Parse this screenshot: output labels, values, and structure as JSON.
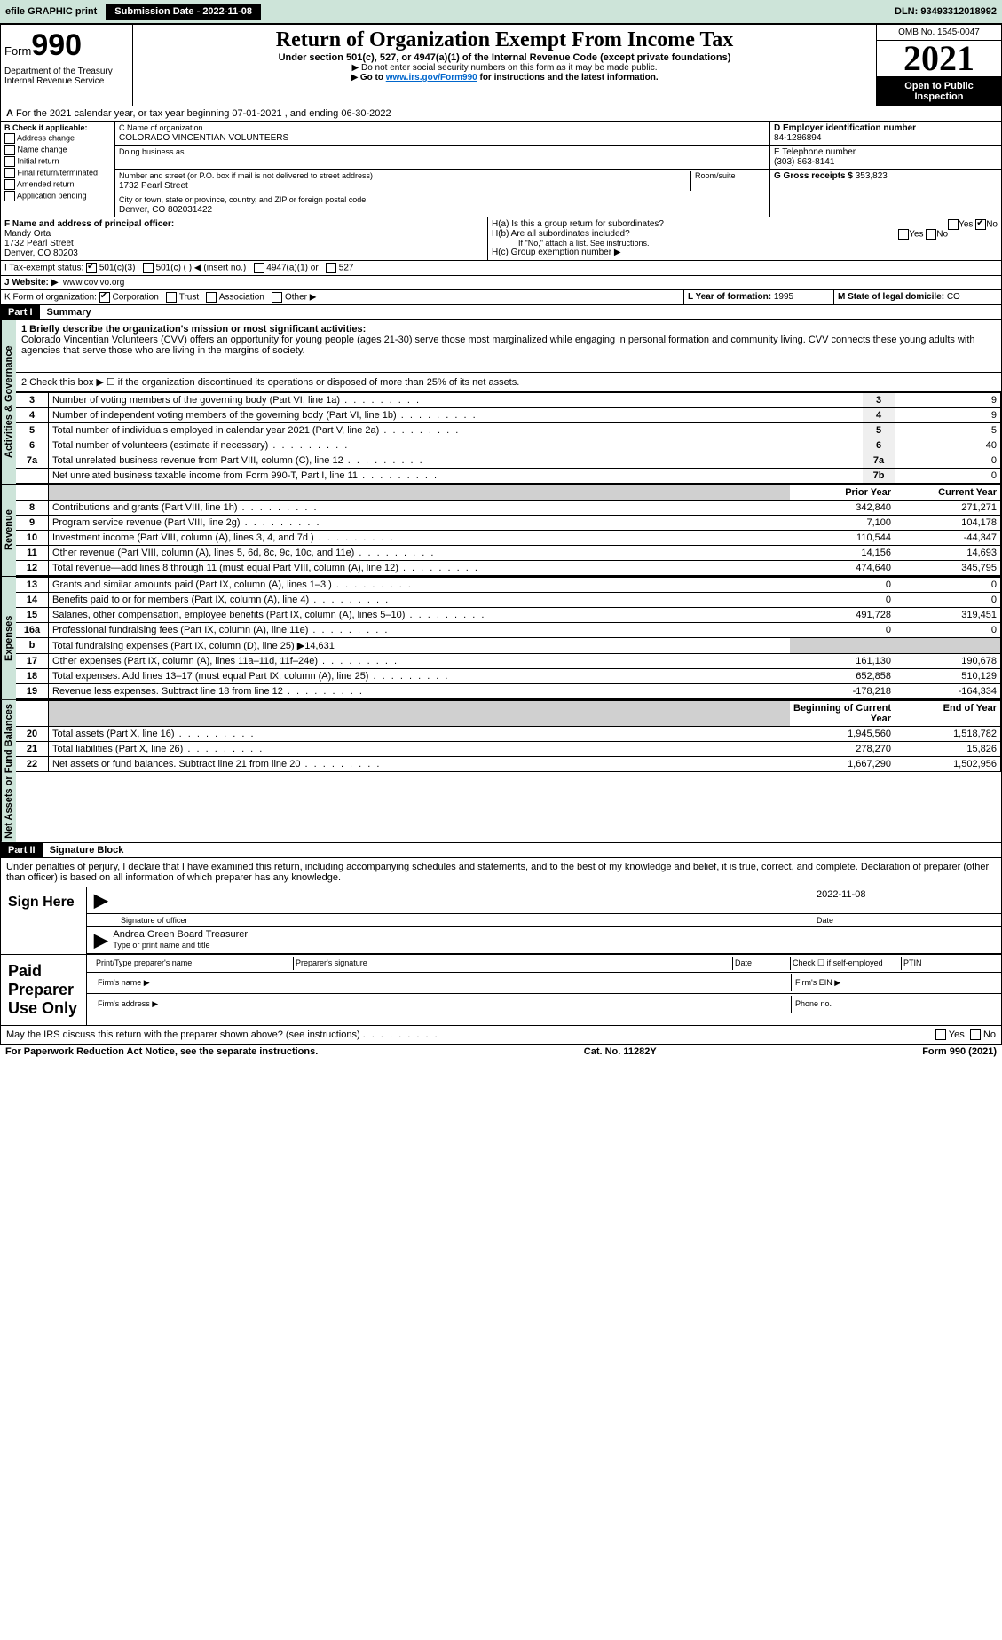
{
  "topbar": {
    "efile": "efile GRAPHIC print",
    "submission_label": "Submission Date - 2022-11-08",
    "dln": "DLN: 93493312018992"
  },
  "header": {
    "form_label": "Form",
    "form_number": "990",
    "title": "Return of Organization Exempt From Income Tax",
    "subtitle": "Under section 501(c), 527, or 4947(a)(1) of the Internal Revenue Code (except private foundations)",
    "note1": "▶ Do not enter social security numbers on this form as it may be made public.",
    "note2_pre": "▶ Go to ",
    "note2_link": "www.irs.gov/Form990",
    "note2_post": " for instructions and the latest information.",
    "dept": "Department of the Treasury\nInternal Revenue Service",
    "omb": "OMB No. 1545-0047",
    "year": "2021",
    "inspect": "Open to Public Inspection"
  },
  "A": {
    "text": "For the 2021 calendar year, or tax year beginning 07-01-2021   , and ending 06-30-2022"
  },
  "B": {
    "label": "B Check if applicable:",
    "opts": [
      "Address change",
      "Name change",
      "Initial return",
      "Final return/terminated",
      "Amended return",
      "Application pending"
    ]
  },
  "C": {
    "name_label": "C Name of organization",
    "name": "COLORADO VINCENTIAN VOLUNTEERS",
    "dba_label": "Doing business as",
    "street_label": "Number and street (or P.O. box if mail is not delivered to street address)",
    "room_label": "Room/suite",
    "street": "1732 Pearl Street",
    "city_label": "City or town, state or province, country, and ZIP or foreign postal code",
    "city": "Denver, CO  802031422"
  },
  "D": {
    "label": "D Employer identification number",
    "value": "84-1286894"
  },
  "E": {
    "label": "E Telephone number",
    "value": "(303) 863-8141"
  },
  "G": {
    "label": "G Gross receipts $",
    "value": "353,823"
  },
  "F": {
    "label": "F  Name and address of principal officer:",
    "name": "Mandy Orta",
    "addr1": "1732 Pearl Street",
    "addr2": "Denver, CO  80203"
  },
  "H": {
    "a": "H(a)  Is this a group return for subordinates?",
    "b": "H(b)  Are all subordinates included?",
    "b_note": "If \"No,\" attach a list. See instructions.",
    "c": "H(c)  Group exemption number ▶",
    "yes": "Yes",
    "no": "No"
  },
  "I": {
    "label": "I   Tax-exempt status:",
    "o1": "501(c)(3)",
    "o2": "501(c) (  ) ◀ (insert no.)",
    "o3": "4947(a)(1) or",
    "o4": "527"
  },
  "J": {
    "label": "J   Website: ▶",
    "value": "www.covivo.org"
  },
  "K": {
    "label": "K Form of organization:",
    "o1": "Corporation",
    "o2": "Trust",
    "o3": "Association",
    "o4": "Other ▶"
  },
  "L": {
    "label": "L Year of formation:",
    "value": "1995"
  },
  "M": {
    "label": "M State of legal domicile:",
    "value": "CO"
  },
  "part1": {
    "label": "Part I",
    "title": "Summary",
    "l1": "1  Briefly describe the organization's mission or most significant activities:",
    "mission": "Colorado Vincentian Volunteers (CVV) offers an opportunity for young people (ages 21-30) serve those most marginalized while engaging in personal formation and community living. CVV connects these young adults with agencies that serve those who are living in the margins of society.",
    "l2": "2   Check this box ▶ ☐  if the organization discontinued its operations or disposed of more than 25% of its net assets.",
    "col_prior": "Prior Year",
    "col_current": "Current Year",
    "col_begin": "Beginning of Current Year",
    "col_end": "End of Year",
    "rows_gov": [
      {
        "n": "3",
        "d": "Number of voting members of the governing body (Part VI, line 1a)",
        "label": "3",
        "v": "9"
      },
      {
        "n": "4",
        "d": "Number of independent voting members of the governing body (Part VI, line 1b)",
        "label": "4",
        "v": "9"
      },
      {
        "n": "5",
        "d": "Total number of individuals employed in calendar year 2021 (Part V, line 2a)",
        "label": "5",
        "v": "5"
      },
      {
        "n": "6",
        "d": "Total number of volunteers (estimate if necessary)",
        "label": "6",
        "v": "40"
      },
      {
        "n": "7a",
        "d": "Total unrelated business revenue from Part VIII, column (C), line 12",
        "label": "7a",
        "v": "0"
      },
      {
        "n": "",
        "d": "Net unrelated business taxable income from Form 990-T, Part I, line 11",
        "label": "7b",
        "v": "0"
      }
    ],
    "rows_rev": [
      {
        "n": "8",
        "d": "Contributions and grants (Part VIII, line 1h)",
        "p": "342,840",
        "c": "271,271"
      },
      {
        "n": "9",
        "d": "Program service revenue (Part VIII, line 2g)",
        "p": "7,100",
        "c": "104,178"
      },
      {
        "n": "10",
        "d": "Investment income (Part VIII, column (A), lines 3, 4, and 7d )",
        "p": "110,544",
        "c": "-44,347"
      },
      {
        "n": "11",
        "d": "Other revenue (Part VIII, column (A), lines 5, 6d, 8c, 9c, 10c, and 11e)",
        "p": "14,156",
        "c": "14,693"
      },
      {
        "n": "12",
        "d": "Total revenue—add lines 8 through 11 (must equal Part VIII, column (A), line 12)",
        "p": "474,640",
        "c": "345,795"
      }
    ],
    "rows_exp": [
      {
        "n": "13",
        "d": "Grants and similar amounts paid (Part IX, column (A), lines 1–3 )",
        "p": "0",
        "c": "0"
      },
      {
        "n": "14",
        "d": "Benefits paid to or for members (Part IX, column (A), line 4)",
        "p": "0",
        "c": "0"
      },
      {
        "n": "15",
        "d": "Salaries, other compensation, employee benefits (Part IX, column (A), lines 5–10)",
        "p": "491,728",
        "c": "319,451"
      },
      {
        "n": "16a",
        "d": "Professional fundraising fees (Part IX, column (A), line 11e)",
        "p": "0",
        "c": "0"
      },
      {
        "n": "b",
        "d": "Total fundraising expenses (Part IX, column (D), line 25) ▶14,631",
        "p": "",
        "c": "",
        "shade": true
      },
      {
        "n": "17",
        "d": "Other expenses (Part IX, column (A), lines 11a–11d, 11f–24e)",
        "p": "161,130",
        "c": "190,678"
      },
      {
        "n": "18",
        "d": "Total expenses. Add lines 13–17 (must equal Part IX, column (A), line 25)",
        "p": "652,858",
        "c": "510,129"
      },
      {
        "n": "19",
        "d": "Revenue less expenses. Subtract line 18 from line 12",
        "p": "-178,218",
        "c": "-164,334"
      }
    ],
    "rows_net": [
      {
        "n": "20",
        "d": "Total assets (Part X, line 16)",
        "p": "1,945,560",
        "c": "1,518,782"
      },
      {
        "n": "21",
        "d": "Total liabilities (Part X, line 26)",
        "p": "278,270",
        "c": "15,826"
      },
      {
        "n": "22",
        "d": "Net assets or fund balances. Subtract line 21 from line 20",
        "p": "1,667,290",
        "c": "1,502,956"
      }
    ],
    "tabs": {
      "gov": "Activities & Governance",
      "rev": "Revenue",
      "exp": "Expenses",
      "net": "Net Assets or Fund Balances"
    }
  },
  "part2": {
    "label": "Part II",
    "title": "Signature Block",
    "penalty": "Under penalties of perjury, I declare that I have examined this return, including accompanying schedules and statements, and to the best of my knowledge and belief, it is true, correct, and complete. Declaration of preparer (other than officer) is based on all information of which preparer has any knowledge.",
    "sign_here": "Sign Here",
    "sig_date": "2022-11-08",
    "sig_officer": "Signature of officer",
    "sig_date_label": "Date",
    "officer_name": "Andrea Green  Board Treasurer",
    "type_name": "Type or print name and title",
    "paid": "Paid Preparer Use Only",
    "prep_name": "Print/Type preparer's name",
    "prep_sig": "Preparer's signature",
    "date": "Date",
    "check_self": "Check ☐ if self-employed",
    "ptin": "PTIN",
    "firm_name": "Firm's name   ▶",
    "firm_ein": "Firm's EIN ▶",
    "firm_addr": "Firm's address ▶",
    "phone": "Phone no.",
    "may_irs": "May the IRS discuss this return with the preparer shown above? (see instructions)"
  },
  "footer": {
    "pra": "For Paperwork Reduction Act Notice, see the separate instructions.",
    "cat": "Cat. No. 11282Y",
    "form": "Form 990 (2021)"
  }
}
